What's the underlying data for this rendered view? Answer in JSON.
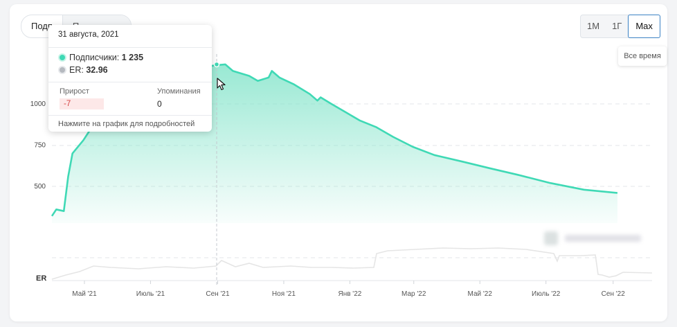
{
  "tabs": {
    "first": "Подп",
    "second": "П"
  },
  "range_buttons": [
    "1М",
    "1Г",
    "Max"
  ],
  "range_hint": "Все время",
  "tooltip": {
    "date": "31 августа, 2021",
    "subscribers_label": "Подписчики:",
    "subscribers_value": "1 235",
    "er_label": "ER:",
    "er_value": "32.96",
    "growth_label": "Прирост",
    "growth_value": "-7",
    "mentions_label": "Упоминания",
    "mentions_value": "0",
    "footer": "Нажмите на график для подробностей"
  },
  "colors": {
    "line": "#3fd9b5",
    "area_top": "#9ee9d6",
    "er_line": "#e6e6e6",
    "active_border": "#3b82c4"
  },
  "chart_data": {
    "type": "area",
    "x_tick_labels": [
      "Май '21",
      "Июль '21",
      "Сен '21",
      "Ноя '21",
      "Янв '22",
      "Мар '22",
      "Май '22",
      "Июль '22",
      "Сен '22"
    ],
    "y_tick_labels": [
      "500",
      "750",
      "1000"
    ],
    "er_axis_label": "ER",
    "series": [
      {
        "values": [
          [
            "2021-04-01",
            320
          ],
          [
            "2021-04-05",
            360
          ],
          [
            "2021-04-12",
            350
          ],
          [
            "2021-04-16",
            560
          ],
          [
            "2021-04-20",
            700
          ],
          [
            "2021-04-30",
            780
          ],
          [
            "2021-05-08",
            860
          ],
          [
            "2021-05-20",
            920
          ],
          [
            "2021-06-05",
            980
          ],
          [
            "2021-06-25",
            1030
          ],
          [
            "2021-07-10",
            1080
          ],
          [
            "2021-07-25",
            1120
          ],
          [
            "2021-08-10",
            1180
          ],
          [
            "2021-08-25",
            1230
          ],
          [
            "2021-08-31",
            1235
          ],
          [
            "2021-09-08",
            1240
          ],
          [
            "2021-09-15",
            1200
          ],
          [
            "2021-09-30",
            1170
          ],
          [
            "2021-10-08",
            1140
          ],
          [
            "2021-10-18",
            1160
          ],
          [
            "2021-10-21",
            1200
          ],
          [
            "2021-10-28",
            1160
          ],
          [
            "2021-11-10",
            1120
          ],
          [
            "2021-11-25",
            1060
          ],
          [
            "2021-12-02",
            1020
          ],
          [
            "2021-12-05",
            1040
          ],
          [
            "2021-12-15",
            1000
          ],
          [
            "2021-12-28",
            950
          ],
          [
            "2022-01-10",
            900
          ],
          [
            "2022-01-25",
            860
          ],
          [
            "2022-02-10",
            800
          ],
          [
            "2022-02-28",
            740
          ],
          [
            "2022-03-20",
            690
          ],
          [
            "2022-04-15",
            650
          ],
          [
            "2022-05-10",
            610
          ],
          [
            "2022-06-05",
            570
          ],
          [
            "2022-07-05",
            520
          ],
          [
            "2022-08-05",
            480
          ],
          [
            "2022-09-05",
            460
          ]
        ]
      }
    ]
  }
}
